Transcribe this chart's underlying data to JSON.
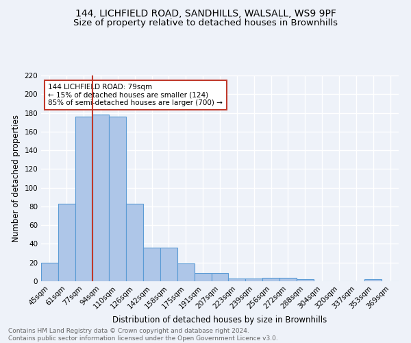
{
  "title1": "144, LICHFIELD ROAD, SANDHILLS, WALSALL, WS9 9PF",
  "title2": "Size of property relative to detached houses in Brownhills",
  "xlabel": "Distribution of detached houses by size in Brownhills",
  "ylabel": "Number of detached properties",
  "categories": [
    "45sqm",
    "61sqm",
    "77sqm",
    "94sqm",
    "110sqm",
    "126sqm",
    "142sqm",
    "158sqm",
    "175sqm",
    "191sqm",
    "207sqm",
    "223sqm",
    "239sqm",
    "256sqm",
    "272sqm",
    "288sqm",
    "304sqm",
    "320sqm",
    "337sqm",
    "353sqm",
    "369sqm"
  ],
  "values": [
    20,
    83,
    176,
    178,
    176,
    83,
    36,
    36,
    19,
    9,
    9,
    3,
    3,
    4,
    4,
    2,
    0,
    0,
    0,
    2,
    0
  ],
  "bar_color": "#aec6e8",
  "bar_edge_color": "#5b9bd5",
  "vline_x": 2.5,
  "vline_color": "#c0392b",
  "annotation_text": "144 LICHFIELD ROAD: 79sqm\n← 15% of detached houses are smaller (124)\n85% of semi-detached houses are larger (700) →",
  "annotation_box_color": "#ffffff",
  "annotation_box_edge": "#c0392b",
  "ylim": [
    0,
    220
  ],
  "yticks": [
    0,
    20,
    40,
    60,
    80,
    100,
    120,
    140,
    160,
    180,
    200,
    220
  ],
  "footer_text": "Contains HM Land Registry data © Crown copyright and database right 2024.\nContains public sector information licensed under the Open Government Licence v3.0.",
  "bg_color": "#eef2f9",
  "grid_color": "#ffffff",
  "title1_fontsize": 10,
  "title2_fontsize": 9.5,
  "xlabel_fontsize": 8.5,
  "ylabel_fontsize": 8.5,
  "tick_fontsize": 7.5,
  "annotation_fontsize": 7.5,
  "footer_fontsize": 6.5
}
